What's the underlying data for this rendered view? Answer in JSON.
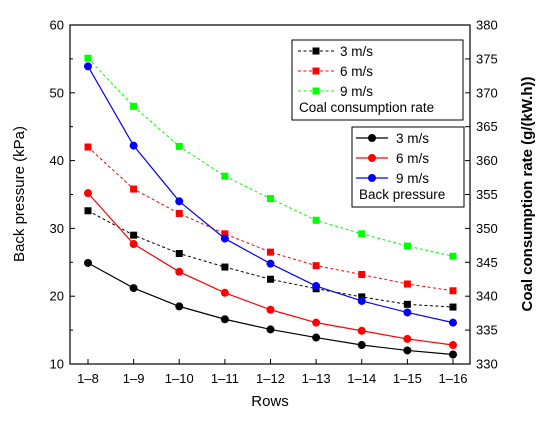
{
  "chart_data": {
    "type": "line",
    "title": "",
    "xlabel": "Rows",
    "ylabel_left": "Back pressure (kPa)",
    "ylabel_right": "Coal consumption rate (g/(kW.h))",
    "categories": [
      "1–8",
      "1–9",
      "1–10",
      "1–11",
      "1–12",
      "1–13",
      "1–14",
      "1–15",
      "1–16"
    ],
    "ylim_left": [
      10,
      60
    ],
    "yticks_left": [
      10,
      20,
      30,
      40,
      50,
      60
    ],
    "ylim_right": [
      330,
      380
    ],
    "yticks_right": [
      330,
      335,
      340,
      345,
      350,
      355,
      360,
      365,
      370,
      375,
      380
    ],
    "grid": false,
    "back_pressure": {
      "axis": "left",
      "legend_title": "Back pressure",
      "series": [
        {
          "name": "3 m/s",
          "color": "#000000",
          "values": [
            24.9,
            21.2,
            18.5,
            16.6,
            15.1,
            13.9,
            12.8,
            12.0,
            11.4
          ]
        },
        {
          "name": "6 m/s",
          "color": "#ff0000",
          "values": [
            35.2,
            27.7,
            23.6,
            20.5,
            18.0,
            16.1,
            14.9,
            13.7,
            12.8
          ]
        },
        {
          "name": "9 m/s",
          "color": "#0000ff",
          "values": [
            53.9,
            42.2,
            34.0,
            28.5,
            24.8,
            21.5,
            19.3,
            17.6,
            16.1
          ]
        }
      ]
    },
    "coal_consumption": {
      "axis": "right",
      "legend_title": "Coal consumption rate",
      "series": [
        {
          "name": "3 m/s",
          "color": "#000000",
          "values": [
            352.6,
            349.0,
            346.3,
            344.3,
            342.5,
            341.1,
            339.9,
            338.8,
            338.4
          ]
        },
        {
          "name": "6 m/s",
          "color": "#ff0000",
          "values": [
            362.0,
            355.8,
            352.2,
            349.2,
            346.5,
            344.5,
            343.2,
            341.8,
            340.8
          ]
        },
        {
          "name": "9 m/s",
          "color": "#00ff00",
          "values": [
            375.1,
            368.0,
            362.1,
            357.7,
            354.4,
            351.2,
            349.2,
            347.4,
            345.9
          ]
        }
      ]
    }
  }
}
